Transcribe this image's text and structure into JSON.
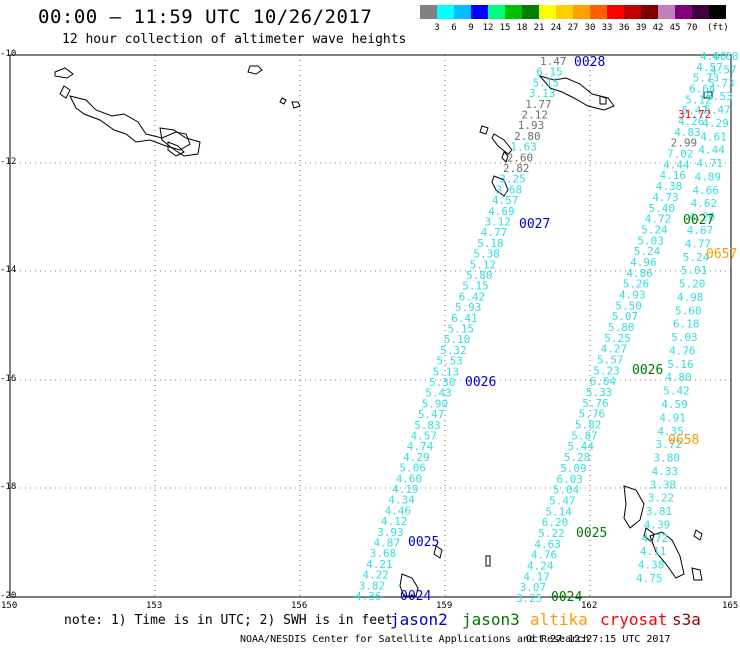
{
  "title": "00:00 – 11:59 UTC 10/26/2017",
  "subtitle": "12 hour collection of altimeter wave heights",
  "scale": {
    "colors": [
      "#808080",
      "#00ffff",
      "#00bfff",
      "#0000ff",
      "#00ff80",
      "#00c000",
      "#008000",
      "#ffff00",
      "#ffd000",
      "#ffa000",
      "#ff6000",
      "#ff0000",
      "#c00000",
      "#800000",
      "#c080c0",
      "#800080",
      "#400040",
      "#000000"
    ],
    "ticks": [
      "3",
      "6",
      "9",
      "12",
      "15",
      "18",
      "21",
      "24",
      "27",
      "30",
      "33",
      "36",
      "39",
      "42",
      "45",
      "70"
    ],
    "unit": "(ft)"
  },
  "axes": {
    "lon_labels": [
      "150",
      "153",
      "156",
      "159",
      "162",
      "165"
    ],
    "lat_labels": [
      "-10",
      "-12",
      "-14",
      "-16",
      "-18",
      "-20"
    ]
  },
  "passes": [
    {
      "label": "0028",
      "color": "#0000cc"
    },
    {
      "label": "0027",
      "color": "#0000cc"
    },
    {
      "label": "0026",
      "color": "#0000cc"
    },
    {
      "label": "0025",
      "color": "#0000cc"
    },
    {
      "label": "0024",
      "color": "#0000cc"
    },
    {
      "label": "0027",
      "color": "#007700"
    },
    {
      "label": "0026",
      "color": "#007700"
    },
    {
      "label": "0025",
      "color": "#007700"
    },
    {
      "label": "0024",
      "color": "#007700"
    },
    {
      "label": "0657",
      "color": "#ff9900"
    },
    {
      "label": "0658",
      "color": "#ff9900"
    }
  ],
  "track1_values": [
    "1.47",
    "6.15",
    "5.15",
    "3.13",
    "1.77",
    "2.12",
    "1.93",
    "2.80",
    "1.63",
    "2.60",
    "2.82",
    "3.25",
    "3.68",
    "4.57",
    "4.69",
    "3.12",
    "4.77",
    "5.18",
    "5.38",
    "5.12",
    "5.80",
    "5.15",
    "6.42",
    "5.93",
    "6.41",
    "5.15",
    "5.10",
    "5.32",
    "5.53",
    "5.13",
    "5.30",
    "5.43",
    "5.90",
    "5.47",
    "5.83",
    "4.57",
    "4.74",
    "4.29",
    "5.06",
    "4.60",
    "4.19",
    "4.34",
    "4.46",
    "4.12",
    "3.93",
    "4.87",
    "3.68",
    "4.21",
    "4.22",
    "3.82",
    "4.36"
  ],
  "track2_values": [
    "4.60",
    "4.57",
    "5.73",
    "6.64",
    "5.12",
    "5.47",
    "4.26",
    "4.83",
    "2.99",
    "7.02",
    "4.44",
    "4.16",
    "4.38",
    "4.73",
    "5.40",
    "4.72",
    "5.24",
    "5.03",
    "5.24",
    "4.96",
    "4.86",
    "5.26",
    "4.93",
    "5.50",
    "5.07",
    "5.80",
    "5.25",
    "4.27",
    "5.57",
    "5.23",
    "6.04",
    "5.33",
    "5.76",
    "5.76",
    "5.82",
    "5.87",
    "5.44",
    "5.28",
    "5.09",
    "6.03",
    "5.04",
    "5.47",
    "5.14",
    "6.20",
    "5.22",
    "4.63",
    "4.76",
    "4.24",
    "4.17",
    "3.07",
    "3.25"
  ],
  "track3_values": [
    "4.60",
    "4.57",
    "5.73",
    "6.53",
    "5.47",
    "4.29",
    "4.61",
    "4.44",
    "4.71",
    "4.89",
    "4.66",
    "4.62",
    "4.26",
    "4.67",
    "4.77",
    "5.24",
    "5.01",
    "5.20",
    "4.98",
    "5.60",
    "6.18",
    "5.03",
    "4.76",
    "5.16",
    "4.80",
    "5.42",
    "4.59",
    "4.91",
    "4.35",
    "3.72",
    "3.80",
    "4.33",
    "3.38",
    "3.22",
    "3.81",
    "4.39",
    "4.72",
    "4.11",
    "4.38",
    "4.75"
  ],
  "track2_gray": [
    "2.99"
  ],
  "red_value": "31.72",
  "note": "note: 1) Time is in UTC; 2) SWH is in feet",
  "satellites": [
    {
      "name": "jason2",
      "color": "#0000cc"
    },
    {
      "name": "jason3",
      "color": "#007700"
    },
    {
      "name": "altika",
      "color": "#ff9900"
    },
    {
      "name": "cryosat",
      "color": "#ff0000"
    },
    {
      "name": "s3a",
      "color": "#990000"
    }
  ],
  "credit": "NOAA/NESDIS Center for Satellite Applications and Research",
  "timestamp": "Oct 27 12:27:15 UTC 2017"
}
